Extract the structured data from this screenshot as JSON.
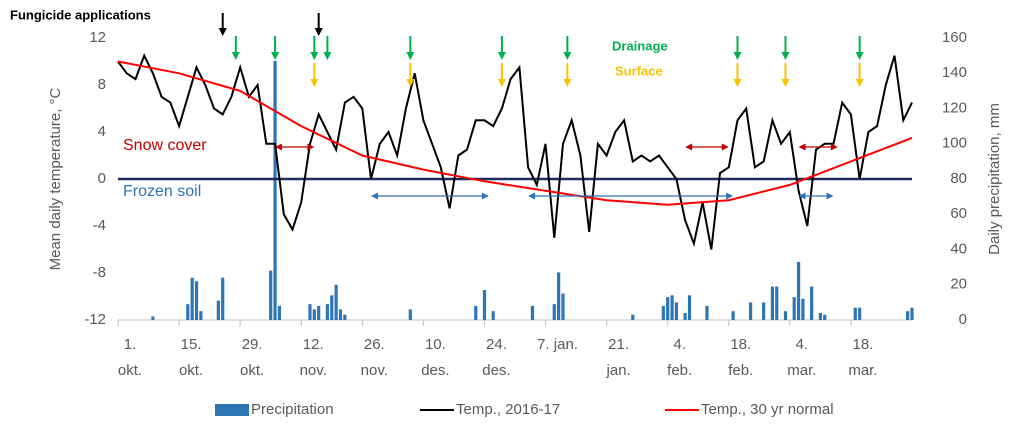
{
  "chart_data": {
    "type": "combo",
    "xlim": [
      0,
      182
    ],
    "xticks": [
      {
        "value": 0,
        "label": [
          "1.",
          "okt."
        ]
      },
      {
        "value": 14,
        "label": [
          "15.",
          "okt."
        ]
      },
      {
        "value": 28,
        "label": [
          "29.",
          "okt."
        ]
      },
      {
        "value": 42,
        "label": [
          "12.",
          "nov."
        ]
      },
      {
        "value": 56,
        "label": [
          "26.",
          "nov."
        ]
      },
      {
        "value": 70,
        "label": [
          "10.",
          "des."
        ]
      },
      {
        "value": 84,
        "label": [
          "24.",
          "des."
        ]
      },
      {
        "value": 98,
        "label": [
          "7. jan."
        ]
      },
      {
        "value": 112,
        "label": [
          "21.",
          "jan."
        ]
      },
      {
        "value": 126,
        "label": [
          "4.",
          "feb."
        ]
      },
      {
        "value": 140,
        "label": [
          "18.",
          "feb."
        ]
      },
      {
        "value": 154,
        "label": [
          "4.",
          "mar."
        ]
      },
      {
        "value": 168,
        "label": [
          "18.",
          "mar."
        ]
      }
    ],
    "ylim": [
      -12,
      12
    ],
    "yticks": [
      -12,
      -8,
      -4,
      0,
      4,
      8,
      12
    ],
    "y2lim": [
      0,
      160
    ],
    "y2ticks": [
      0,
      20,
      40,
      60,
      80,
      100,
      120,
      140,
      160
    ],
    "ylabel": "Mean daily temperature, °C",
    "y2label": "Daily precipitation, mm",
    "zero_line_color": "#1f2d5c",
    "series": [
      {
        "name": "Precipitation",
        "type": "bar",
        "axis": "y2",
        "color": "#2e75b6",
        "x": [
          8,
          16,
          17,
          18,
          19,
          23,
          24,
          35,
          36,
          37,
          44,
          45,
          46,
          48,
          49,
          50,
          51,
          52,
          67,
          82,
          84,
          86,
          95,
          100,
          101,
          102,
          118,
          125,
          126,
          127,
          128,
          130,
          131,
          135,
          141,
          145,
          148,
          150,
          151,
          153,
          155,
          156,
          157,
          159,
          161,
          162,
          169,
          170,
          181,
          182
        ],
        "values": [
          2,
          9,
          24,
          22,
          5,
          11,
          24,
          28,
          147,
          8,
          9,
          6,
          8,
          9,
          14,
          20,
          6,
          3,
          6,
          8,
          17,
          5,
          8,
          9,
          27,
          15,
          3,
          8,
          13,
          14,
          10,
          4,
          14,
          8,
          5,
          10,
          10,
          19,
          19,
          5,
          13,
          33,
          12,
          19,
          4,
          3,
          7,
          7,
          5,
          7
        ]
      },
      {
        "name": "Temp., 2016-17",
        "type": "line",
        "color": "#000000",
        "x": [
          0,
          2,
          4,
          6,
          8,
          10,
          12,
          14,
          16,
          18,
          20,
          22,
          24,
          26,
          28,
          30,
          32,
          34,
          36,
          38,
          40,
          42,
          44,
          46,
          48,
          50,
          52,
          54,
          56,
          58,
          60,
          62,
          64,
          66,
          68,
          70,
          72,
          74,
          76,
          78,
          80,
          82,
          84,
          86,
          88,
          90,
          92,
          94,
          96,
          98,
          100,
          102,
          104,
          106,
          108,
          110,
          112,
          114,
          116,
          118,
          120,
          122,
          124,
          126,
          128,
          130,
          132,
          134,
          136,
          138,
          140,
          142,
          144,
          146,
          148,
          150,
          152,
          154,
          156,
          158,
          160,
          162,
          164,
          166,
          168,
          170,
          172,
          174,
          176,
          178,
          180,
          182
        ],
        "values": [
          10,
          9,
          8.5,
          10.5,
          9,
          7,
          6.5,
          4.5,
          7,
          9.5,
          8,
          6,
          5.5,
          7,
          9.5,
          7,
          8,
          3,
          3,
          -3,
          -4.3,
          -2,
          3,
          5.5,
          4,
          2.5,
          6.5,
          7,
          6,
          0,
          3,
          4,
          2,
          6,
          9,
          5,
          3,
          1,
          -2.5,
          2,
          2.5,
          5,
          5,
          4.5,
          6,
          8.5,
          9.5,
          1,
          -0.5,
          3,
          -5,
          3,
          5,
          2,
          -4.5,
          3,
          2,
          4,
          5,
          1.5,
          2,
          1.5,
          2,
          1,
          0,
          -3.5,
          -5.5,
          -2,
          -6,
          0.5,
          1,
          5,
          6,
          1,
          1.5,
          5,
          3,
          4,
          -1,
          -4,
          2.5,
          3,
          3,
          6.5,
          5.5,
          0,
          4,
          4.5,
          8,
          10.5,
          5,
          6.5
        ]
      },
      {
        "name": "Temp., 30 yr normal",
        "type": "line",
        "color": "#ff0000",
        "x": [
          0,
          14,
          28,
          42,
          56,
          70,
          84,
          98,
          112,
          126,
          140,
          154,
          168,
          182
        ],
        "values": [
          10,
          9,
          7.5,
          4.5,
          2,
          0.8,
          -0.2,
          -1,
          -1.8,
          -2.2,
          -1.8,
          -0.5,
          1.5,
          3.5
        ]
      }
    ],
    "annotations": {
      "fungicide": {
        "label": "Fungicide applications",
        "color": "#000000",
        "x": [
          24,
          46
        ]
      },
      "drainage": {
        "label": "Drainage",
        "color": "#00b050",
        "x": [
          27,
          36,
          45,
          48,
          67,
          88,
          103,
          142,
          153,
          170
        ]
      },
      "surface": {
        "label": "Surface",
        "color": "#ffc000",
        "x": [
          45,
          67,
          88,
          103,
          142,
          153,
          170
        ]
      },
      "snow_cover": {
        "label": "Snow cover",
        "color": "#c00000",
        "ranges": [
          [
            36,
            45
          ],
          [
            130,
            140
          ],
          [
            156,
            165
          ]
        ]
      },
      "frozen_soil": {
        "label": "Frozen soil",
        "color": "#2e75b6",
        "ranges": [
          [
            58,
            85
          ],
          [
            94,
            141
          ],
          [
            156,
            164
          ]
        ]
      }
    }
  }
}
